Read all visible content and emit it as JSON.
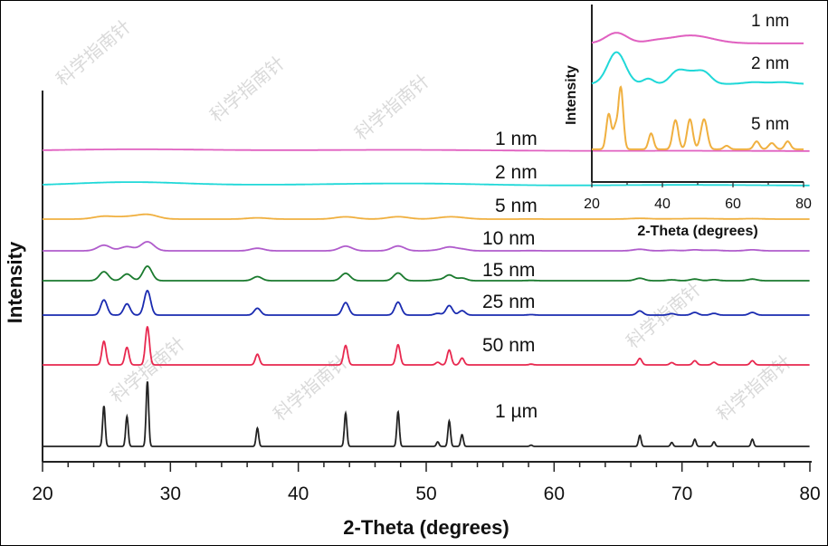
{
  "chart_data": {
    "type": "line",
    "title": "",
    "xlabel": "2-Theta (degrees)",
    "ylabel": "Intensity",
    "xlim": [
      20,
      80
    ],
    "ylim": [
      0,
      393
    ],
    "xticks": [
      20,
      30,
      40,
      50,
      60,
      70,
      80
    ],
    "minor_tick_step": 2,
    "grid": false,
    "peak_positions": [
      24.8,
      26.6,
      28.2,
      36.8,
      43.7,
      47.8,
      50.9,
      51.8,
      52.8,
      58.2,
      66.7,
      69.2,
      71.0,
      72.5,
      75.5
    ],
    "peak_relative_intensity": [
      62,
      46,
      100,
      28,
      51,
      53,
      7,
      39,
      18,
      2,
      17,
      6,
      11,
      7,
      11
    ],
    "series": [
      {
        "name": "1 µm",
        "color": "#222222",
        "offset": 0,
        "max_height": 72,
        "peak_sigma_deg": 0.1
      },
      {
        "name": "50 nm",
        "color": "#e8284f",
        "offset": 90,
        "max_height": 42,
        "peak_sigma_deg": 0.16
      },
      {
        "name": "25 nm",
        "color": "#1a2bb0",
        "offset": 145,
        "max_height": 27,
        "peak_sigma_deg": 0.25
      },
      {
        "name": "15 nm",
        "color": "#1a7a2e",
        "offset": 183,
        "max_height": 16,
        "peak_sigma_deg": 0.35
      },
      {
        "name": "10 nm",
        "color": "#b05ccc",
        "offset": 216,
        "max_height": 10,
        "peak_sigma_deg": 0.5
      },
      {
        "name": "5 nm",
        "color": "#f0b040",
        "offset": 251,
        "max_height": 5,
        "peak_sigma_deg": 0.8
      },
      {
        "name": "2 nm",
        "color": "#20d8d8",
        "offset": 288,
        "max_height": 2,
        "peak_sigma_deg": 4
      },
      {
        "name": "1 nm",
        "color": "#e060c0",
        "offset": 326,
        "max_height": 1,
        "peak_sigma_deg": 6
      }
    ],
    "inset": {
      "xlabel": "2-Theta (degrees)",
      "ylabel": "Intensity",
      "xlim": [
        20,
        80
      ],
      "ylim": [
        0,
        200
      ],
      "xticks": [
        20,
        40,
        60,
        80
      ],
      "series": [
        {
          "name": "1 nm",
          "color": "#e060c0",
          "offset": 156,
          "peaks": [
            [
              27,
              12,
              3
            ],
            [
              48,
              9,
              6
            ],
            [
              38,
              2,
              3
            ]
          ]
        },
        {
          "name": "2 nm",
          "color": "#20d8d8",
          "offset": 110,
          "peaks": [
            [
              27,
              36,
              2.5
            ],
            [
              36,
              6,
              1.5
            ],
            [
              44,
              12,
              2
            ],
            [
              48,
              12,
              2.5
            ],
            [
              52,
              11,
              2
            ],
            [
              66,
              2,
              3
            ],
            [
              74,
              2,
              3
            ]
          ]
        },
        {
          "name": "5 nm",
          "color": "#f0b040",
          "offset": 36,
          "peaks": [
            [
              24.8,
              40,
              0.7
            ],
            [
              28.2,
              70,
              0.7
            ],
            [
              26.6,
              22,
              0.6
            ],
            [
              36.8,
              18,
              0.7
            ],
            [
              43.7,
              33,
              0.8
            ],
            [
              47.8,
              34,
              0.8
            ],
            [
              51.8,
              34,
              0.9
            ],
            [
              58.2,
              4,
              0.8
            ],
            [
              66.7,
              9,
              0.8
            ],
            [
              71,
              7,
              0.9
            ],
            [
              75.5,
              9,
              0.8
            ]
          ]
        }
      ]
    }
  },
  "watermark": "科学指南针"
}
